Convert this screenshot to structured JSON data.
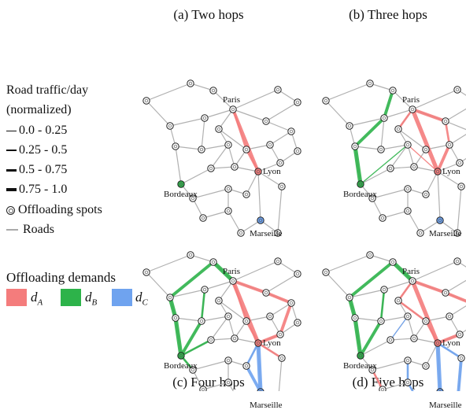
{
  "panels": [
    {
      "id": "a",
      "title": "(a) Two hops"
    },
    {
      "id": "b",
      "title": "(b) Three hops"
    },
    {
      "id": "c",
      "title": "(c) Four hops"
    },
    {
      "id": "d",
      "title": "(d) Five hops"
    }
  ],
  "cities": {
    "paris": "Paris",
    "lyon": "Lyon",
    "bordeaux": "Bordeaux",
    "marseille": "Marseille"
  },
  "legend": {
    "traffic_title_line1": "Road traffic/day",
    "traffic_title_line2": "(normalized)",
    "traffic_ranges": [
      "0.0 - 0.25",
      "0.25 - 0.5",
      "0.5 - 0.75",
      "0.75 - 1.0"
    ],
    "offloading_spots": "Offloading spots",
    "roads": "Roads",
    "demands_title": "Offloading demands",
    "demands": [
      {
        "symbol": "d",
        "sub": "A",
        "color": "#f47c7c"
      },
      {
        "symbol": "d",
        "sub": "B",
        "color": "#2db34a"
      },
      {
        "symbol": "d",
        "sub": "C",
        "color": "#6fa3ef"
      }
    ]
  },
  "colors": {
    "road": "#b0b0b0",
    "demand_A": "#f47c7c",
    "demand_B": "#2db34a",
    "demand_C": "#6fa3ef",
    "spot_fill": "#ffffff",
    "spot_stroke": "#222222"
  }
}
